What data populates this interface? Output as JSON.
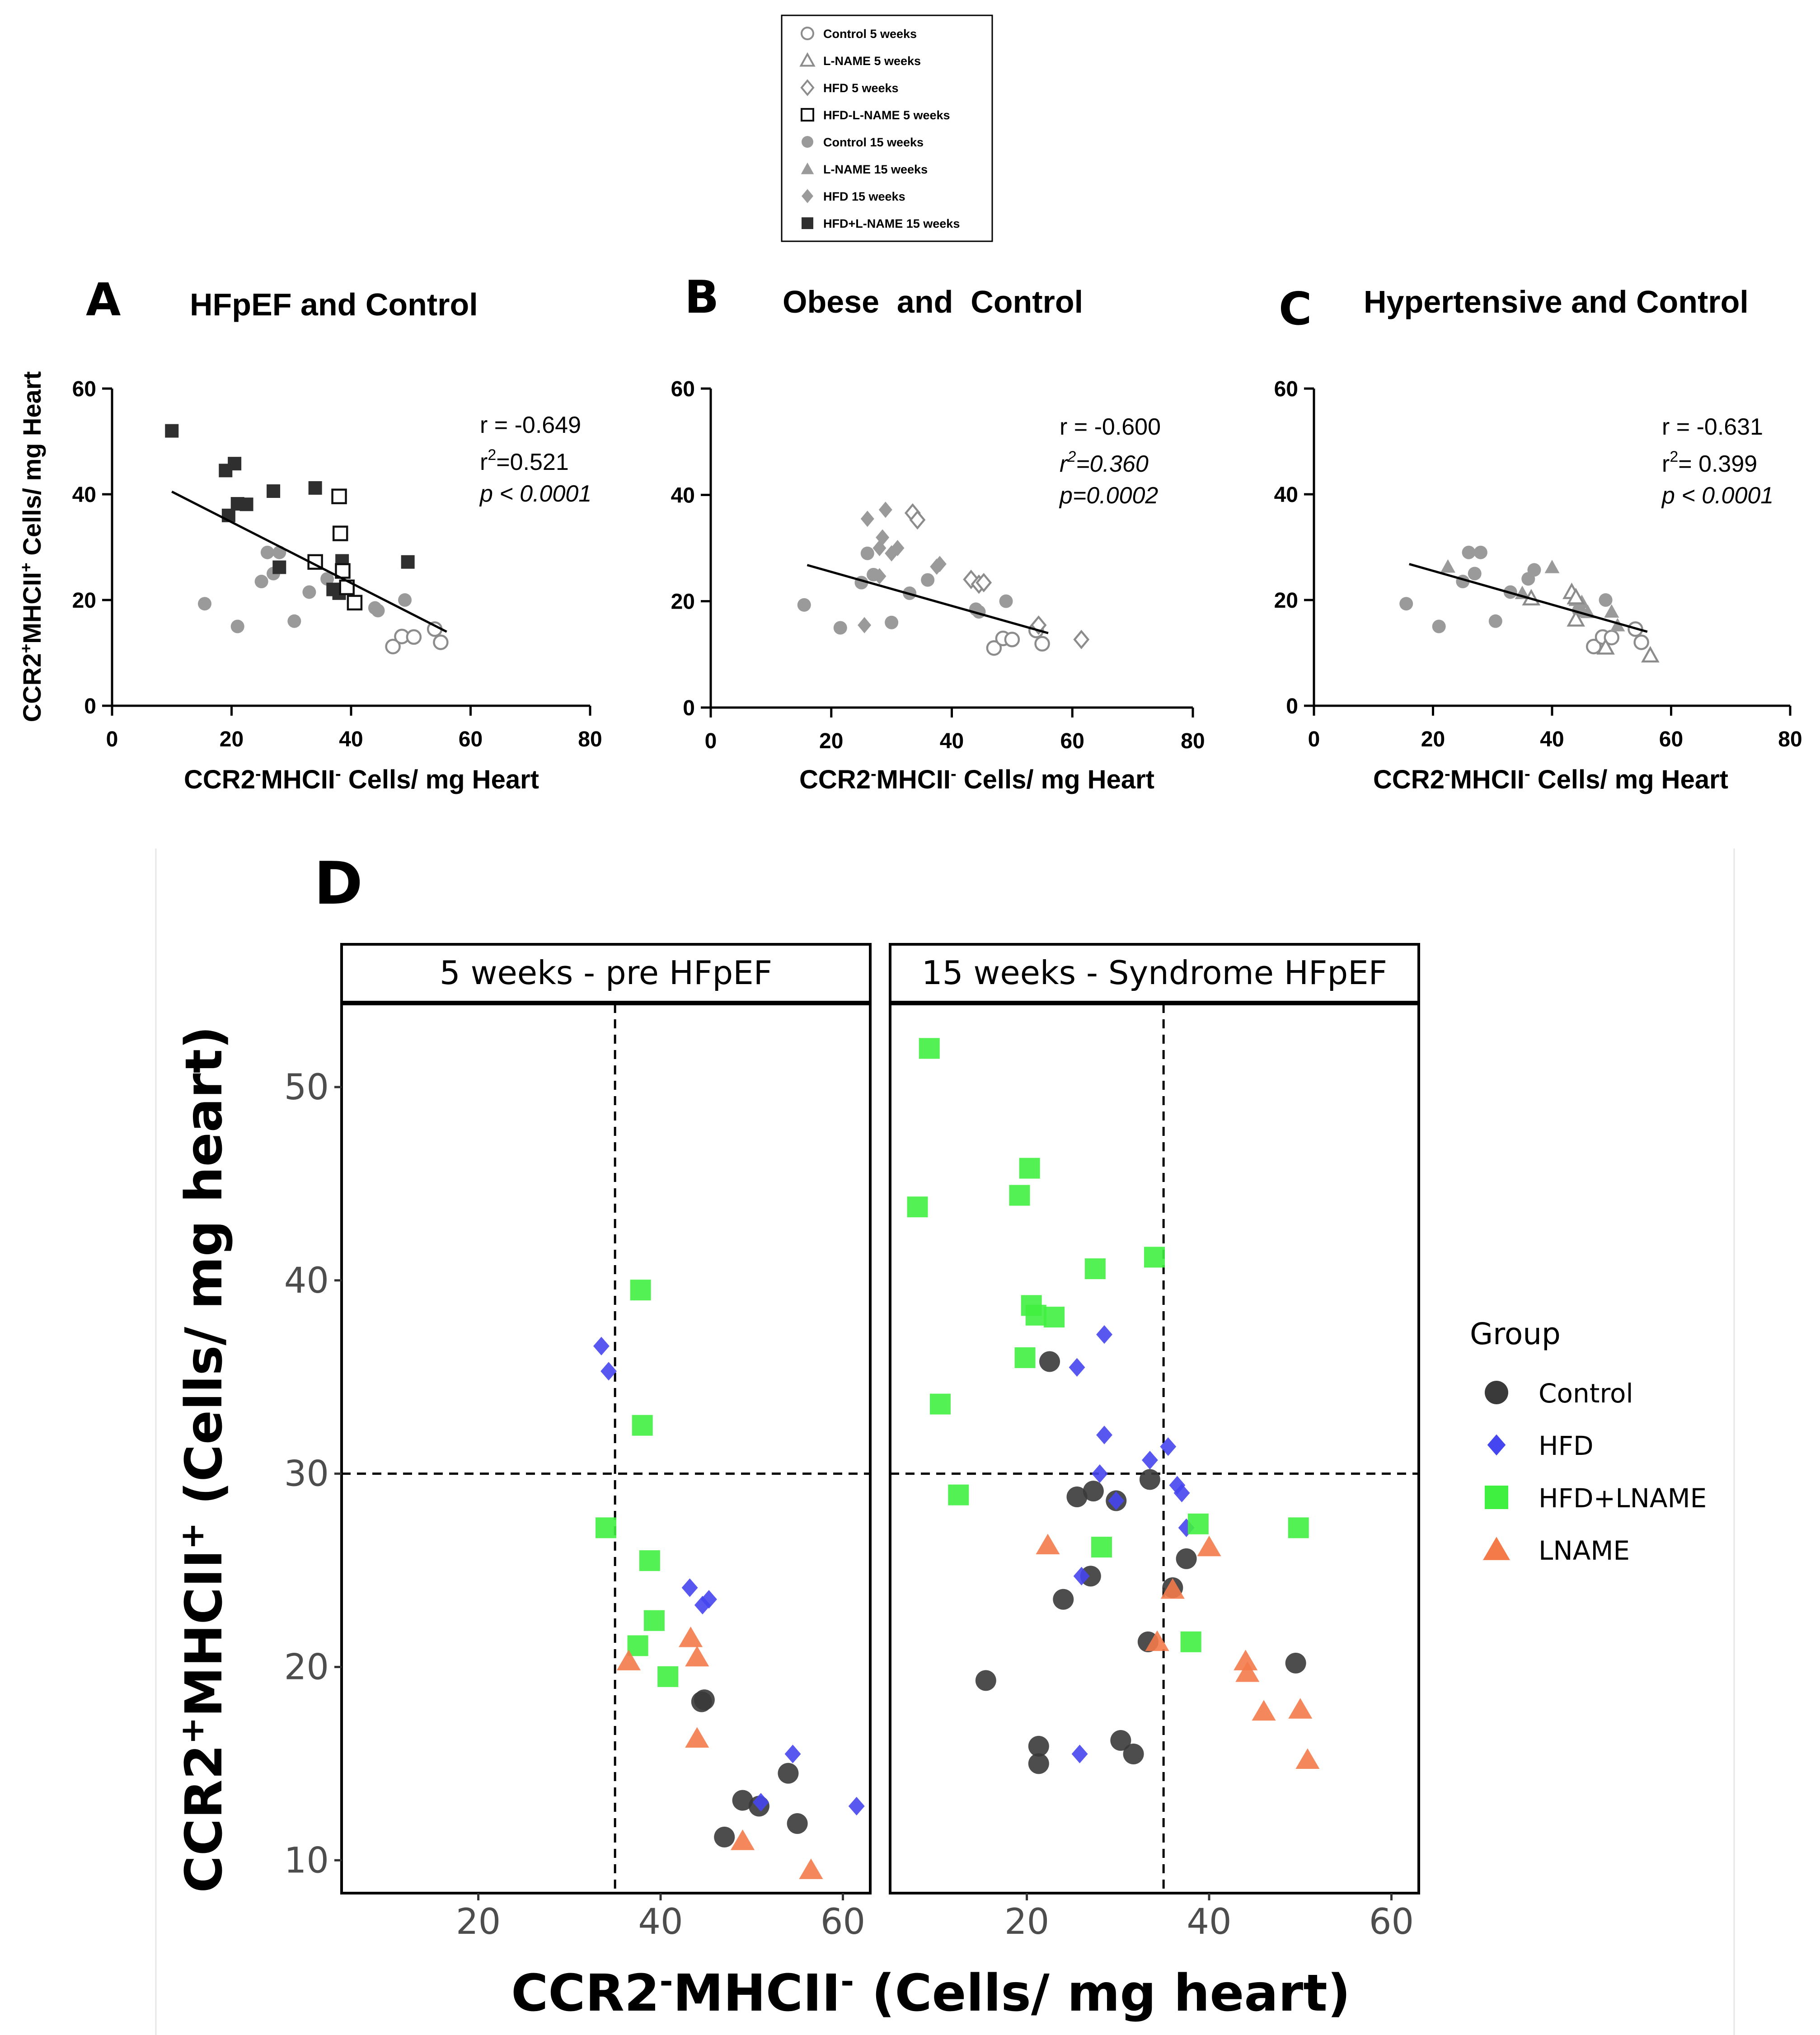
{
  "legend_top": {
    "items": [
      {
        "label": "Control 5 weeks",
        "marker": "circle-open"
      },
      {
        "label": "L-NAME 5 weeks",
        "marker": "triangle-open"
      },
      {
        "label": "HFD 5 weeks",
        "marker": "diamond-open"
      },
      {
        "label": "HFD-L-NAME 5 weeks",
        "marker": "square-open"
      },
      {
        "label": "Control 15 weeks",
        "marker": "circle-filled"
      },
      {
        "label": "L-NAME 15 weeks",
        "marker": "triangle-filled"
      },
      {
        "label": "HFD 15 weeks",
        "marker": "diamond-filled"
      },
      {
        "label": "HFD+L-NAME 15 weeks",
        "marker": "square-filled"
      }
    ]
  },
  "colors": {
    "gray_marker": "#9a9a9a",
    "dark_marker": "#2f2f2f",
    "open_stroke": "#8c8c8c",
    "control": "#3a3a3a",
    "hfd": "#4646f0",
    "hfd_lname": "#40f040",
    "lname": "#f47a4a"
  },
  "chart_data": [
    {
      "panel": "A",
      "title": "HFpEF and Control",
      "type": "scatter",
      "xlabel": "CCR2-MHCII- Cells/ mg Heart",
      "ylabel": "CCR2+MHCII+ Cells/ mg  Heart",
      "xlim": [
        0,
        80
      ],
      "ylim": [
        0,
        60
      ],
      "xticks": [
        "0",
        "20",
        "40",
        "60",
        "80"
      ],
      "yticks": [
        "0",
        "20",
        "40",
        "60"
      ],
      "stats": {
        "r": "r = -0.649",
        "r2_sup": "2",
        "r2_value": "=0.521",
        "p": "p < 0.0001"
      },
      "regression": {
        "x1": 10,
        "y1": 40.5,
        "x2": 56,
        "y2": 14
      },
      "series": [
        {
          "name": "Control 15 weeks",
          "marker": "circle-filled",
          "points": [
            [
              15.5,
              19.3
            ],
            [
              21,
              15
            ],
            [
              25,
              23.5
            ],
            [
              26,
              29
            ],
            [
              27,
              25
            ],
            [
              28,
              29
            ],
            [
              30.5,
              16
            ],
            [
              33,
              21.5
            ],
            [
              36,
              24
            ],
            [
              44,
              18.5
            ],
            [
              44.5,
              18
            ],
            [
              49,
              20
            ]
          ]
        },
        {
          "name": "Control 5 weeks",
          "marker": "circle-open",
          "points": [
            [
              47,
              11.2
            ],
            [
              48.5,
              13.1
            ],
            [
              50.5,
              13
            ],
            [
              54,
              14.5
            ],
            [
              55,
              12
            ]
          ]
        },
        {
          "name": "HFD+L-NAME 15 weeks",
          "marker": "square-filled",
          "points": [
            [
              10,
              52
            ],
            [
              19,
              44.5
            ],
            [
              20.5,
              45.8
            ],
            [
              19.5,
              36
            ],
            [
              21,
              38.2
            ],
            [
              22.5,
              38.1
            ],
            [
              27,
              40.6
            ],
            [
              28,
              26.2
            ],
            [
              34,
              41.2
            ],
            [
              37,
              22
            ],
            [
              38.5,
              27.4
            ],
            [
              38,
              21.3
            ],
            [
              49.5,
              27.2
            ]
          ]
        },
        {
          "name": "HFD-L-NAME 5 weeks",
          "marker": "square-open",
          "points": [
            [
              34,
              27.2
            ],
            [
              38,
              39.6
            ],
            [
              38.2,
              32.6
            ],
            [
              38.6,
              25.5
            ],
            [
              39.3,
              22.4
            ],
            [
              40.6,
              19.5
            ]
          ]
        }
      ]
    },
    {
      "panel": "B",
      "title": "Obese  and  Control",
      "type": "scatter",
      "xlabel": "CCR2-MHCII- Cells/ mg Heart",
      "ylabel": "",
      "xlim": [
        0,
        80
      ],
      "ylim": [
        0,
        60
      ],
      "xticks": [
        "0",
        "20",
        "40",
        "60",
        "80"
      ],
      "yticks": [
        "0",
        "20",
        "40",
        "60"
      ],
      "stats": {
        "r": "r = -0.600",
        "r2_sup": "2",
        "r2_value": "=0.360",
        "p": "p=0.0002"
      },
      "regression": {
        "x1": 16,
        "y1": 26.8,
        "x2": 56,
        "y2": 14
      },
      "series": [
        {
          "name": "Control 15 weeks",
          "marker": "circle-filled",
          "points": [
            [
              15.5,
              19.3
            ],
            [
              21.5,
              15
            ],
            [
              25,
              23.5
            ],
            [
              26,
              29
            ],
            [
              27,
              25
            ],
            [
              30,
              16
            ],
            [
              33,
              21.5
            ],
            [
              36,
              24
            ],
            [
              44,
              18.5
            ],
            [
              44.5,
              18
            ],
            [
              49,
              20
            ]
          ]
        },
        {
          "name": "Control 5 weeks",
          "marker": "circle-open",
          "points": [
            [
              47,
              11.2
            ],
            [
              48.5,
              13
            ],
            [
              50,
              12.8
            ],
            [
              54,
              14.5
            ],
            [
              55,
              12
            ]
          ]
        },
        {
          "name": "HFD 15 weeks",
          "marker": "diamond-filled",
          "points": [
            [
              26,
              35.5
            ],
            [
              28.5,
              32
            ],
            [
              29,
              37.2
            ],
            [
              28,
              30
            ],
            [
              30,
              29
            ],
            [
              37.5,
              26.5
            ],
            [
              38,
              27
            ],
            [
              31,
              30
            ],
            [
              25.5,
              15.5
            ],
            [
              28,
              24.7
            ]
          ]
        },
        {
          "name": "HFD 5 weeks",
          "marker": "diamond-open",
          "points": [
            [
              33.5,
              36.6
            ],
            [
              34.3,
              35.3
            ],
            [
              43.2,
              24.1
            ],
            [
              44.5,
              23.2
            ],
            [
              45.3,
              23.5
            ],
            [
              54.4,
              15.5
            ],
            [
              61.5,
              12.8
            ]
          ]
        }
      ]
    },
    {
      "panel": "C",
      "title": "Hypertensive and Control",
      "type": "scatter",
      "xlabel": "CCR2-MHCII- Cells/ mg Heart",
      "ylabel": "",
      "xlim": [
        0,
        80
      ],
      "ylim": [
        0,
        60
      ],
      "xticks": [
        "0",
        "20",
        "40",
        "60",
        "80"
      ],
      "yticks": [
        "0",
        "20",
        "40",
        "60"
      ],
      "stats": {
        "r": "r = -0.631",
        "r2_sup": "2",
        "r2_value": "= 0.399",
        "p": "p < 0.0001"
      },
      "regression": {
        "x1": 16,
        "y1": 26.8,
        "x2": 56,
        "y2": 14
      },
      "series": [
        {
          "name": "Control 15 weeks",
          "marker": "circle-filled",
          "points": [
            [
              15.5,
              19.3
            ],
            [
              21,
              15
            ],
            [
              25,
              23.5
            ],
            [
              26,
              29
            ],
            [
              27,
              25
            ],
            [
              28,
              29
            ],
            [
              30.5,
              16
            ],
            [
              33,
              21.5
            ],
            [
              36,
              24
            ],
            [
              37,
              25.7
            ],
            [
              44.5,
              18
            ],
            [
              49,
              20
            ]
          ]
        },
        {
          "name": "Control 5 weeks",
          "marker": "circle-open",
          "points": [
            [
              47,
              11.2
            ],
            [
              48.5,
              13
            ],
            [
              50,
              12.9
            ],
            [
              54,
              14.5
            ],
            [
              55,
              12
            ]
          ]
        },
        {
          "name": "L-NAME 15 weeks",
          "marker": "triangle-filled",
          "points": [
            [
              22.5,
              26.3
            ],
            [
              35,
              21.3
            ],
            [
              40,
              26.2
            ],
            [
              44,
              20
            ],
            [
              45,
              19.6
            ],
            [
              46,
              17.7
            ],
            [
              50,
              17.8
            ],
            [
              51,
              15.2
            ]
          ]
        },
        {
          "name": "L-NAME 5 weeks",
          "marker": "triangle-open",
          "points": [
            [
              36.5,
              20.3
            ],
            [
              43.3,
              21.5
            ],
            [
              44,
              20.5
            ],
            [
              44,
              16.3
            ],
            [
              49,
              11
            ],
            [
              56.5,
              9.5
            ]
          ]
        }
      ]
    },
    {
      "panel": "D",
      "type": "scatter-faceted",
      "xlabel": "CCR2-MHCII- (Cells/ mg heart)",
      "ylabel": "CCR2+MHCII+ (Cells/ mg heart)",
      "xlim": [
        5,
        63
      ],
      "ylim": [
        8.3,
        54.3
      ],
      "xticks": [
        "20",
        "40",
        "60"
      ],
      "yticks": [
        "10",
        "20",
        "30",
        "40",
        "50"
      ],
      "vline": 35,
      "hline": 30,
      "legend_title": "Group",
      "legend": [
        "Control",
        "HFD",
        "HFD+LNAME",
        "LNAME"
      ],
      "facets": [
        {
          "title": "5 weeks - pre HFpEF",
          "series": [
            {
              "name": "Control",
              "points": [
                [
                  44.5,
                  18.2
                ],
                [
                  44.8,
                  18.3
                ],
                [
                  47,
                  11.2
                ],
                [
                  49,
                  13.1
                ],
                [
                  50.8,
                  12.8
                ],
                [
                  54,
                  14.5
                ],
                [
                  55,
                  11.9
                ]
              ]
            },
            {
              "name": "HFD",
              "points": [
                [
                  33.5,
                  36.6
                ],
                [
                  34.3,
                  35.3
                ],
                [
                  43.2,
                  24.1
                ],
                [
                  44.6,
                  23.2
                ],
                [
                  45.3,
                  23.5
                ],
                [
                  51,
                  13
                ],
                [
                  54.5,
                  15.5
                ],
                [
                  61.5,
                  12.8
                ]
              ]
            },
            {
              "name": "HFD+LNAME",
              "points": [
                [
                  34,
                  27.2
                ],
                [
                  37.8,
                  39.5
                ],
                [
                  38,
                  32.5
                ],
                [
                  38.8,
                  25.5
                ],
                [
                  39.3,
                  22.4
                ],
                [
                  40.8,
                  19.5
                ],
                [
                  37.5,
                  21.1
                ]
              ]
            },
            {
              "name": "LNAME",
              "points": [
                [
                  36.5,
                  20.3
                ],
                [
                  43.3,
                  21.5
                ],
                [
                  44,
                  20.5
                ],
                [
                  44,
                  16.3
                ],
                [
                  49,
                  11
                ],
                [
                  56.5,
                  9.5
                ]
              ]
            }
          ]
        },
        {
          "title": "15 weeks - Syndrome HFpEF",
          "series": [
            {
              "name": "Control",
              "points": [
                [
                  15.5,
                  19.3
                ],
                [
                  21.3,
                  15
                ],
                [
                  21.3,
                  15.9
                ],
                [
                  22.5,
                  35.8
                ],
                [
                  24,
                  23.5
                ],
                [
                  25.5,
                  28.8
                ],
                [
                  27,
                  24.7
                ],
                [
                  27.3,
                  29.1
                ],
                [
                  29.8,
                  28.6
                ],
                [
                  30.3,
                  16.2
                ],
                [
                  31.7,
                  15.5
                ],
                [
                  33.5,
                  29.7
                ],
                [
                  36,
                  24.1
                ],
                [
                  37.5,
                  25.6
                ],
                [
                  49.5,
                  20.2
                ],
                [
                  33.3,
                  21.3
                ]
              ]
            },
            {
              "name": "HFD",
              "points": [
                [
                  25.5,
                  35.5
                ],
                [
                  28.5,
                  37.2
                ],
                [
                  28.5,
                  32
                ],
                [
                  28,
                  30
                ],
                [
                  26,
                  24.7
                ],
                [
                  29.8,
                  28.6
                ],
                [
                  33.5,
                  30.7
                ],
                [
                  35.5,
                  31.4
                ],
                [
                  36.5,
                  29.4
                ],
                [
                  37,
                  29
                ],
                [
                  25.8,
                  15.5
                ],
                [
                  37.5,
                  27.2
                ]
              ]
            },
            {
              "name": "HFD+LNAME",
              "points": [
                [
                  8,
                  43.8
                ],
                [
                  9.3,
                  52
                ],
                [
                  10.5,
                  33.6
                ],
                [
                  12.5,
                  28.9
                ],
                [
                  19.2,
                  44.4
                ],
                [
                  20.3,
                  45.8
                ],
                [
                  20.5,
                  38.7
                ],
                [
                  21,
                  38.2
                ],
                [
                  19.8,
                  36
                ],
                [
                  23,
                  38.1
                ],
                [
                  27.5,
                  40.6
                ],
                [
                  28.2,
                  26.2
                ],
                [
                  34,
                  41.2
                ],
                [
                  38,
                  21.3
                ],
                [
                  38.8,
                  27.4
                ],
                [
                  49.8,
                  27.2
                ]
              ]
            },
            {
              "name": "LNAME",
              "points": [
                [
                  22.3,
                  26.3
                ],
                [
                  34.3,
                  21.3
                ],
                [
                  36,
                  24
                ],
                [
                  40,
                  26.2
                ],
                [
                  44,
                  20.3
                ],
                [
                  44.2,
                  19.7
                ],
                [
                  46,
                  17.7
                ],
                [
                  50,
                  17.8
                ],
                [
                  50.8,
                  15.2
                ]
              ]
            }
          ]
        }
      ]
    }
  ]
}
